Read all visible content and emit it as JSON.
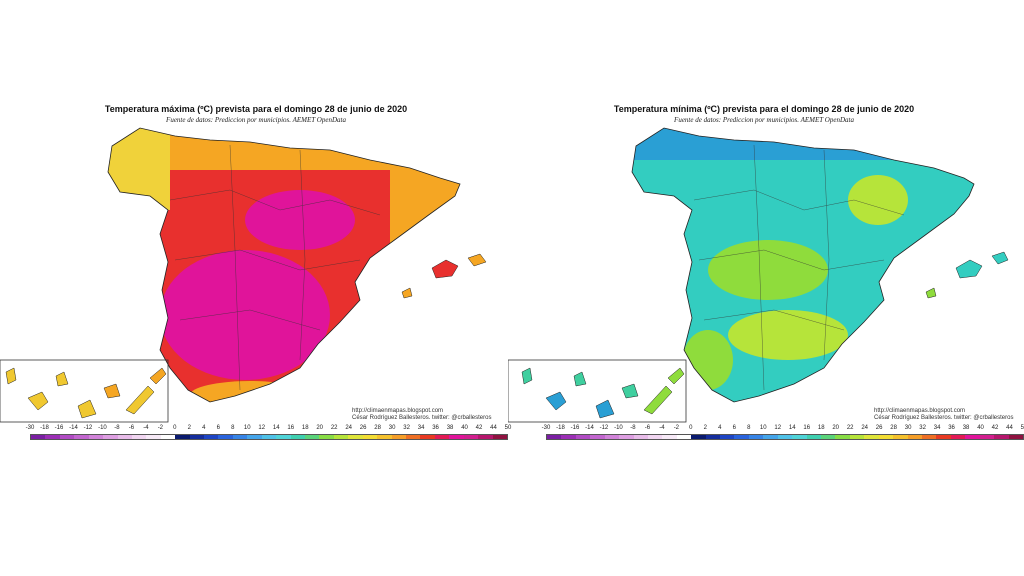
{
  "maps": [
    {
      "title": "Temperatura máxima (ºC) prevista para el domingo 28 de junio de 2020",
      "subtitle": "Fuente de datos: Prediccion por municipios. AEMET OpenData",
      "credits": [
        "http://climaenmapas.blogspot.com",
        "César Rodríguez Ballesteros. twitter: @crballesteros"
      ],
      "palette": {
        "base": "#e8302e",
        "zone_a": "#f5a623",
        "zone_b": "#e0149a",
        "zone_c": "#f0d23a",
        "islands": "#f0c830"
      }
    },
    {
      "title": "Temperatura mínima (ºC) prevista para el domingo 28 de junio de 2020",
      "subtitle": "Fuente de datos: Prediccion por municipios. AEMET OpenData",
      "credits": [
        "http://climaenmapas.blogspot.com",
        "César Rodríguez Ballesteros. twitter: @crballesteros"
      ],
      "palette": {
        "base": "#33cdc0",
        "zone_a": "#8fdc3c",
        "zone_b": "#2a9fd4",
        "zone_c": "#b6e43a",
        "islands": "#3fcf9f"
      }
    }
  ],
  "colorbar": {
    "ticks": [
      "-30",
      "-18",
      "-16",
      "-14",
      "-12",
      "-10",
      "-8",
      "-6",
      "-4",
      "-2",
      "0",
      "2",
      "4",
      "6",
      "8",
      "10",
      "12",
      "14",
      "16",
      "18",
      "20",
      "22",
      "24",
      "26",
      "28",
      "30",
      "32",
      "34",
      "36",
      "38",
      "40",
      "42",
      "44",
      "50"
    ],
    "colors": [
      "#7a1fa2",
      "#9b2fb5",
      "#b04bc3",
      "#c266cf",
      "#d183d9",
      "#de9fe2",
      "#e8bce9",
      "#f1d6f1",
      "#f7eaf7",
      "#ffffff",
      "#0a1a6e",
      "#152d9c",
      "#1e45c4",
      "#2a63dc",
      "#3784e6",
      "#45a5ea",
      "#4fc2e8",
      "#4fd4d8",
      "#3fd0b0",
      "#5ad47a",
      "#88dd45",
      "#b6e43a",
      "#dfe53a",
      "#f3dd34",
      "#f5c12d",
      "#f59e28",
      "#ef6f24",
      "#e83a22",
      "#e21a55",
      "#e0149a",
      "#d11f8e",
      "#b5166c",
      "#8f1240"
    ]
  }
}
